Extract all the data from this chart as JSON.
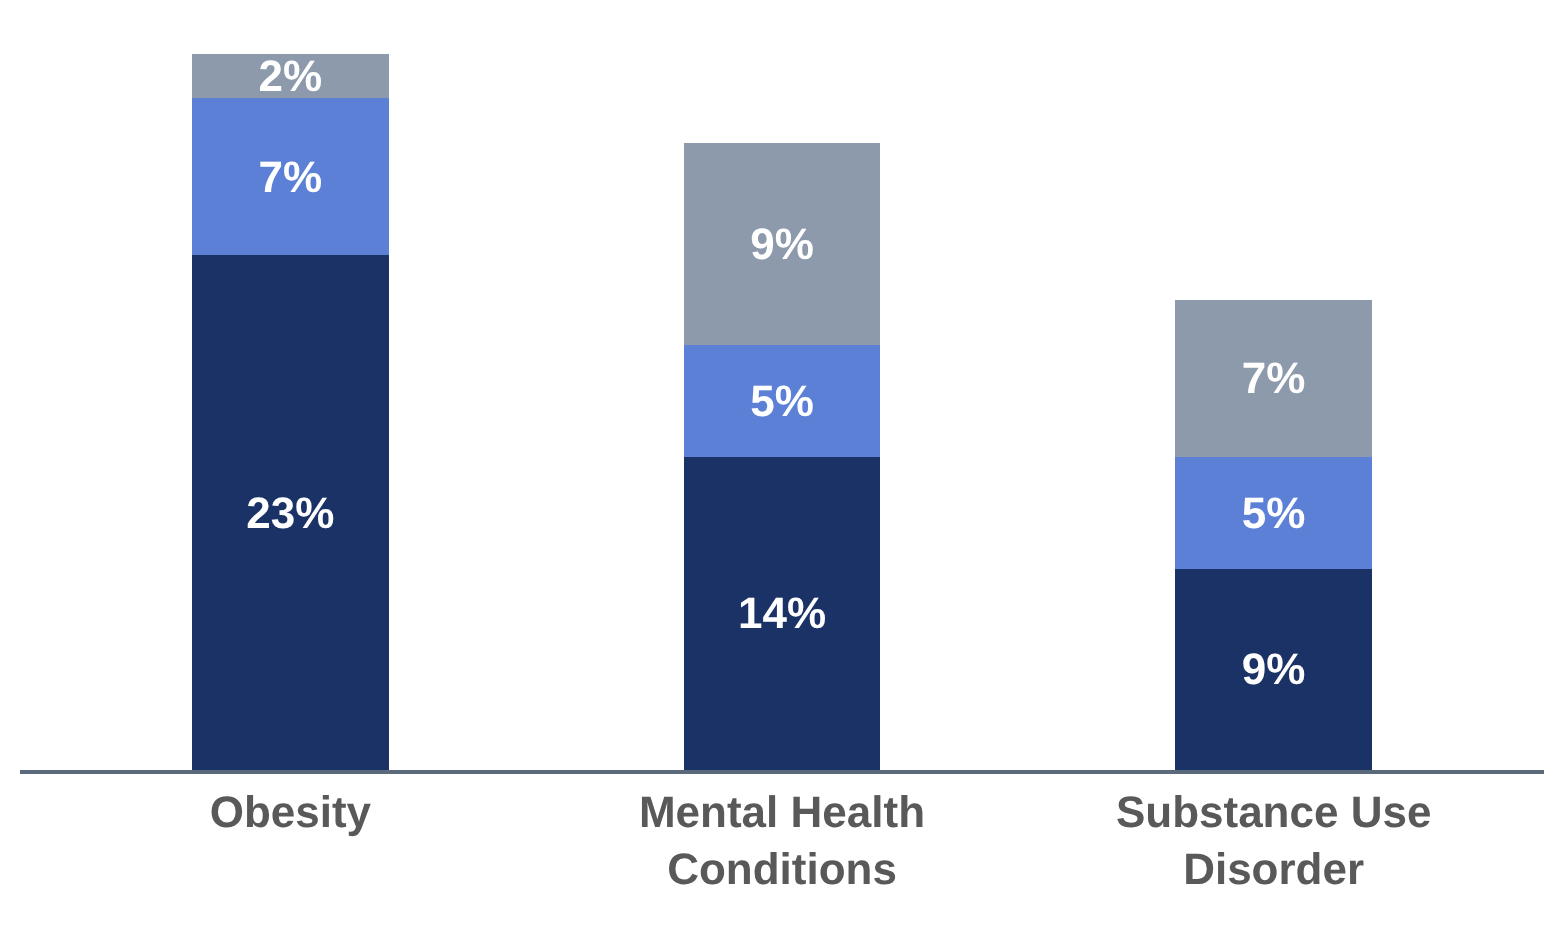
{
  "chart_data": {
    "type": "bar",
    "stacked": true,
    "categories": [
      "Obesity",
      "Mental Health Conditions",
      "Substance Use Disorder"
    ],
    "series": [
      {
        "color": "#1b3266",
        "values": [
          23,
          14,
          9
        ],
        "value_labels": [
          "23%",
          "14%",
          "9%"
        ]
      },
      {
        "color": "#5b80d6",
        "values": [
          7,
          5,
          5
        ],
        "value_labels": [
          "7%",
          "5%",
          "5%"
        ]
      },
      {
        "color": "#8c9aab",
        "values": [
          2,
          9,
          7
        ],
        "value_labels": [
          "2%",
          "9%",
          "7%"
        ]
      }
    ]
  }
}
